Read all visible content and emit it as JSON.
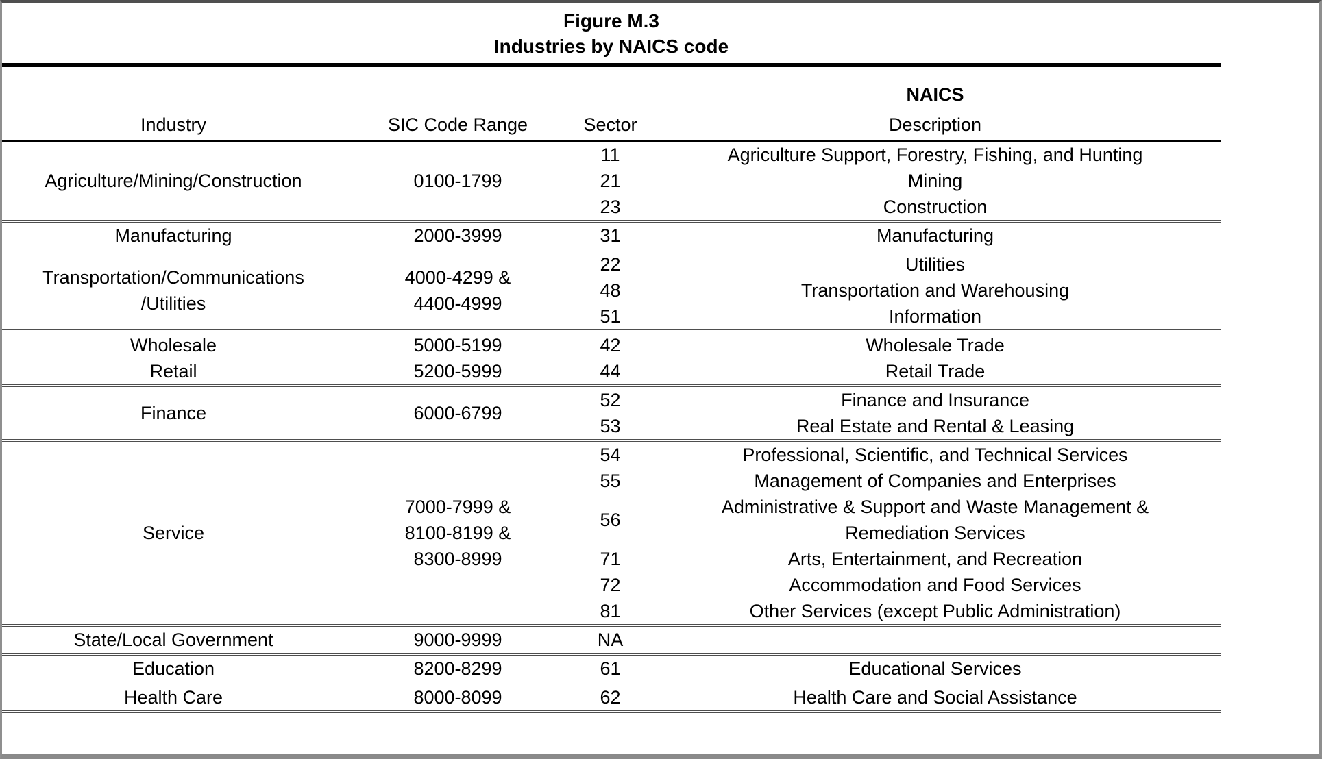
{
  "figure": {
    "title_line1": "Figure M.3",
    "title_line2": "Industries by NAICS code"
  },
  "header": {
    "industry": "Industry",
    "sic": "SIC Code Range",
    "sector": "Sector",
    "naics": "NAICS",
    "description": "Description"
  },
  "colors": {
    "background": "#ffffff",
    "text": "#000000",
    "title_rule": "#000000",
    "header_rule": "#000000",
    "group_divider": "#4e4e4e",
    "frame_border": "#8f8f8f"
  },
  "table": {
    "groups": [
      {
        "industry": [
          "Agriculture/Mining/Construction"
        ],
        "sic": [
          "0100-1799"
        ],
        "rows": [
          {
            "sector": "11",
            "desc": [
              "Agriculture Support, Forestry, Fishing, and Hunting"
            ]
          },
          {
            "sector": "21",
            "desc": [
              "Mining"
            ]
          },
          {
            "sector": "23",
            "desc": [
              "Construction"
            ]
          }
        ]
      },
      {
        "industry": [
          "Manufacturing"
        ],
        "sic": [
          "2000-3999"
        ],
        "rows": [
          {
            "sector": "31",
            "desc": [
              "Manufacturing"
            ]
          }
        ]
      },
      {
        "industry": [
          "Transportation/Communications",
          "/Utilities"
        ],
        "sic": [
          "4000-4299 &",
          "4400-4999"
        ],
        "rows": [
          {
            "sector": "22",
            "desc": [
              "Utilities"
            ]
          },
          {
            "sector": "48",
            "desc": [
              "Transportation and Warehousing"
            ]
          },
          {
            "sector": "51",
            "desc": [
              "Information"
            ]
          }
        ]
      },
      {
        "rows": [
          {
            "industry": [
              "Wholesale"
            ],
            "sic": [
              "5000-5199"
            ],
            "sector": "42",
            "desc": [
              "Wholesale Trade"
            ]
          },
          {
            "industry": [
              "Retail"
            ],
            "sic": [
              "5200-5999"
            ],
            "sector": "44",
            "desc": [
              "Retail Trade"
            ]
          }
        ]
      },
      {
        "industry": [
          "Finance"
        ],
        "sic": [
          "6000-6799"
        ],
        "rows": [
          {
            "sector": "52",
            "desc": [
              "Finance and Insurance"
            ]
          },
          {
            "sector": "53",
            "desc": [
              "Real Estate and Rental & Leasing"
            ]
          }
        ]
      },
      {
        "industry": [
          "Service"
        ],
        "sic": [
          "7000-7999 &",
          "8100-8199 &",
          "8300-8999"
        ],
        "rows": [
          {
            "sector": "54",
            "desc": [
              "Professional, Scientific, and Technical Services"
            ]
          },
          {
            "sector": "55",
            "desc": [
              "Management of Companies and Enterprises"
            ]
          },
          {
            "sector": "56",
            "desc": [
              "Administrative & Support and Waste Management &",
              "Remediation Services"
            ]
          },
          {
            "sector": "71",
            "desc": [
              "Arts, Entertainment, and Recreation"
            ]
          },
          {
            "sector": "72",
            "desc": [
              "Accommodation and Food Services"
            ]
          },
          {
            "sector": "81",
            "desc": [
              "Other Services (except Public Administration)"
            ]
          }
        ]
      },
      {
        "industry": [
          "State/Local Government"
        ],
        "sic": [
          "9000-9999"
        ],
        "rows": [
          {
            "sector": "NA",
            "desc": [
              ""
            ]
          }
        ]
      },
      {
        "industry": [
          "Education"
        ],
        "sic": [
          "8200-8299"
        ],
        "rows": [
          {
            "sector": "61",
            "desc": [
              "Educational Services"
            ]
          }
        ]
      },
      {
        "industry": [
          "Health Care"
        ],
        "sic": [
          "8000-8099"
        ],
        "rows": [
          {
            "sector": "62",
            "desc": [
              "Health Care and Social Assistance"
            ]
          }
        ]
      }
    ]
  }
}
